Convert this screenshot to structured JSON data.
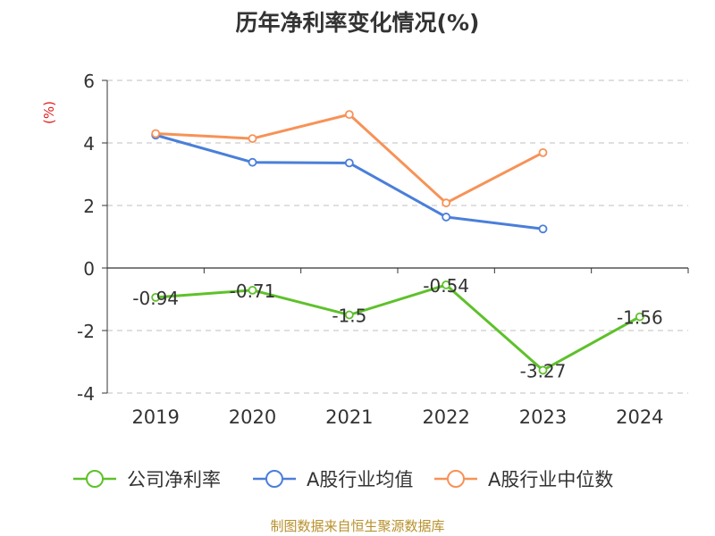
{
  "chart_data": {
    "type": "line",
    "title": "历年净利率变化情况(%)",
    "ylabel": "(%)",
    "categories": [
      "2019",
      "2020",
      "2021",
      "2022",
      "2023",
      "2024"
    ],
    "ylim": [
      -4,
      6
    ],
    "yticks": [
      "6",
      "4",
      "2",
      "0",
      "-2",
      "-4"
    ],
    "grid": true,
    "legend_placement": "bottom",
    "series": [
      {
        "name": "公司净利率",
        "color": "#5ec12a",
        "values": [
          -0.94,
          -0.71,
          -1.5,
          -0.54,
          -3.27,
          -1.56
        ],
        "labels": [
          "-0.94",
          "-0.71",
          "-1.5",
          "-0.54",
          "-3.27",
          "-1.56"
        ]
      },
      {
        "name": "A股行业均值",
        "color": "#4a7fd9",
        "values": [
          4.25,
          3.38,
          3.36,
          1.63,
          1.25,
          null
        ]
      },
      {
        "name": "A股行业中位数",
        "color": "#f79257",
        "values": [
          4.3,
          4.14,
          4.91,
          2.08,
          3.69,
          null
        ]
      }
    ]
  },
  "source_note": "制图数据来自恒生聚源数据库"
}
